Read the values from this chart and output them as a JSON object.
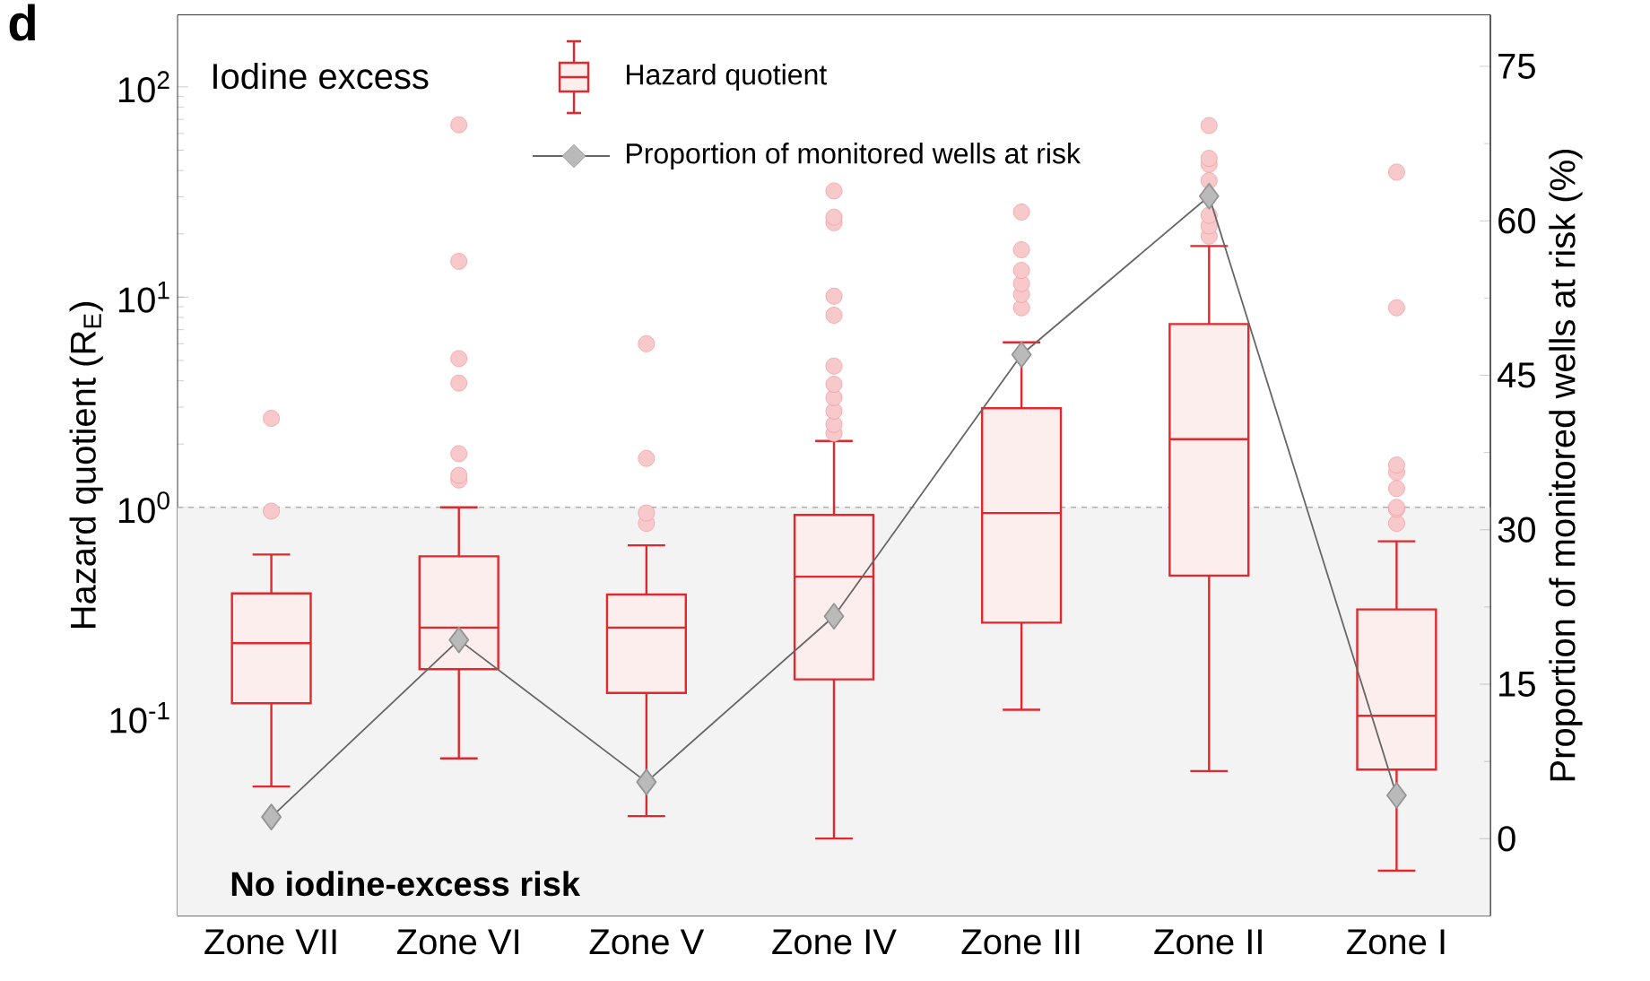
{
  "chart_data": {
    "type": "box",
    "categories": [
      "Zone VII",
      "Zone VI",
      "Zone V",
      "Zone IV",
      "Zone III",
      "Zone II",
      "Zone I"
    ],
    "ylabel": "Hazard quotient (R$_{E}$)",
    "y2label": "Proportion of monitored wells at risk (%)",
    "log": "y",
    "ylim": [
      0.0114,
      220
    ],
    "yticks": [
      {
        "value": 0.1,
        "label": "10$^{-1}$"
      },
      {
        "value": 1,
        "label": "10$^{0}$"
      },
      {
        "value": 10,
        "label": "10$^{1}$"
      },
      {
        "value": 100,
        "label": "10$^{2}$"
      }
    ],
    "y2lim": [
      -7.5,
      80
    ],
    "y2ticks": [
      0,
      15,
      30,
      45,
      60,
      75
    ],
    "legend": "top",
    "annotations": [
      "d",
      "Iodine excess"
    ],
    "ref_lines": [
      {
        "axis": "y",
        "value": 1,
        "color": "#b0b0b0",
        "line_style": "dashed"
      }
    ],
    "bands": [
      {
        "axis": "y",
        "from": 0.0114,
        "to": 1,
        "label": "No iodine-excess risk",
        "color": "#f3f3f3"
      }
    ],
    "series": [
      {
        "name": "Hazard quotient",
        "color": "#e0282e",
        "boxes": [
          {
            "low": 0.047,
            "q1": 0.117,
            "median": 0.226,
            "q3": 0.39,
            "high": 0.597,
            "outliers": [
              0.96,
              2.65
            ]
          },
          {
            "low": 0.064,
            "q1": 0.17,
            "median": 0.268,
            "q3": 0.585,
            "high": 1.0,
            "outliers": [
              1.35,
              1.42,
              1.8,
              3.9,
              5.1,
              14.8,
              66
            ]
          },
          {
            "low": 0.034,
            "q1": 0.131,
            "median": 0.268,
            "q3": 0.385,
            "high": 0.66,
            "outliers": [
              0.84,
              0.94,
              1.71,
              6.0
            ]
          },
          {
            "low": 0.0266,
            "q1": 0.152,
            "median": 0.468,
            "q3": 0.92,
            "high": 2.07,
            "outliers": [
              2.25,
              2.48,
              2.87,
              3.33,
              3.85,
              4.7,
              8.2,
              10.1,
              22.6,
              24,
              32
            ]
          },
          {
            "low": 0.109,
            "q1": 0.283,
            "median": 0.94,
            "q3": 2.96,
            "high": 6.1,
            "outliers": [
              8.9,
              10.3,
              11.6,
              13.4,
              16.8,
              25.4
            ]
          },
          {
            "low": 0.0557,
            "q1": 0.474,
            "median": 2.11,
            "q3": 7.45,
            "high": 17.5,
            "outliers": [
              19.5,
              21.8,
              24.5,
              35.8,
              42.8,
              45.7,
              65.5
            ]
          },
          {
            "low": 0.0187,
            "q1": 0.0566,
            "median": 0.102,
            "q3": 0.327,
            "high": 0.69,
            "outliers": [
              0.84,
              0.98,
              1.0,
              1.23,
              1.47,
              1.59,
              8.9,
              39.3
            ]
          }
        ]
      },
      {
        "name": "Proportion of monitored wells at risk",
        "type": "line",
        "axis": "y2",
        "color": "#666666",
        "marker": "diamond",
        "values": [
          2.1,
          19.3,
          5.5,
          21.6,
          47.0,
          62.4,
          4.2
        ]
      }
    ]
  }
}
